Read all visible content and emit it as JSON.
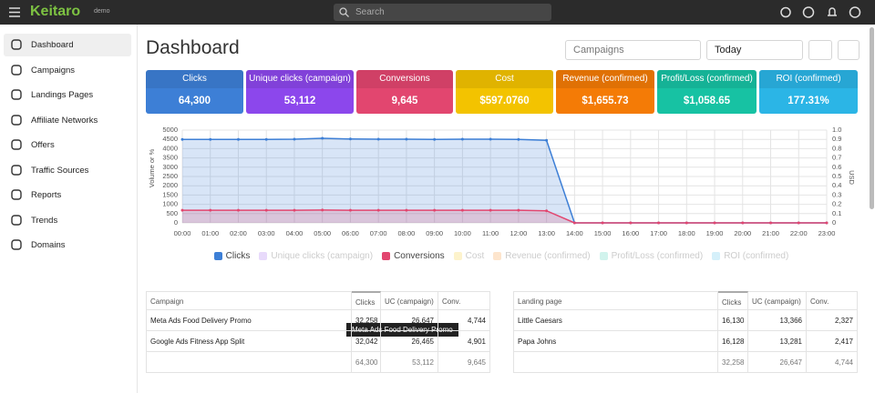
{
  "header": {
    "logo": "Keitaro",
    "badge": "demo",
    "search_placeholder": "Search"
  },
  "sidebar": {
    "items": [
      "Dashboard",
      "Campaigns",
      "Landings Pages",
      "Affiliate Networks",
      "Offers",
      "Traffic Sources",
      "Reports",
      "Trends",
      "Domains"
    ]
  },
  "page": {
    "title": "Dashboard",
    "filters": [
      "Campaigns",
      "Today"
    ]
  },
  "kpis": [
    {
      "label": "Clicks",
      "value": "64,300",
      "color": "#3d7fd6"
    },
    {
      "label": "Unique clicks (campaign)",
      "value": "53,112",
      "color": "#8c47ec"
    },
    {
      "label": "Conversions",
      "value": "9,645",
      "color": "#e2466f"
    },
    {
      "label": "Cost",
      "value": "$597.0760",
      "color": "#f3c300"
    },
    {
      "label": "Revenue (confirmed)",
      "value": "$1,655.73",
      "color": "#f47b06"
    },
    {
      "label": "Profit/Loss (confirmed)",
      "value": "$1,058.65",
      "color": "#17c2a3"
    },
    {
      "label": "ROI (confirmed)",
      "value": "177.31%",
      "color": "#2bb5e6"
    }
  ],
  "chart_data": {
    "type": "line",
    "y_label": "Volume or %",
    "y2_label": "USD",
    "categories": [
      "00:00",
      "01:00",
      "02:00",
      "03:00",
      "04:00",
      "05:00",
      "06:00",
      "07:00",
      "08:00",
      "09:00",
      "10:00",
      "11:00",
      "12:00",
      "13:00",
      "14:00",
      "15:00",
      "16:00",
      "17:00",
      "18:00",
      "19:00",
      "20:00",
      "21:00",
      "22:00",
      "23:00"
    ],
    "series": [
      {
        "name": "Clicks",
        "color": "#3d7fd6",
        "values": [
          4500,
          4500,
          4500,
          4500,
          4510,
          4560,
          4520,
          4510,
          4510,
          4500,
          4510,
          4510,
          4500,
          4450,
          0,
          0,
          0,
          0,
          0,
          0,
          0,
          0,
          0,
          0
        ]
      },
      {
        "name": "Unique clicks (campaign)",
        "color": "#8c47ec",
        "visible": false
      },
      {
        "name": "Conversions",
        "color": "#e2466f",
        "values": [
          680,
          680,
          680,
          680,
          680,
          690,
          680,
          680,
          680,
          680,
          680,
          680,
          680,
          650,
          0,
          0,
          0,
          0,
          0,
          0,
          0,
          0,
          0,
          0
        ]
      },
      {
        "name": "Cost",
        "color": "#f3c300",
        "visible": false
      },
      {
        "name": "Revenue (confirmed)",
        "color": "#f47b06",
        "visible": false
      },
      {
        "name": "Profit/Loss (confirmed)",
        "color": "#17c2a3",
        "visible": false
      },
      {
        "name": "ROI (confirmed)",
        "color": "#2bb5e6",
        "visible": false
      }
    ],
    "ylim": [
      0,
      5000
    ],
    "yticks": [
      0,
      500,
      1000,
      1500,
      2000,
      2500,
      3000,
      3500,
      4000,
      4500,
      5000
    ],
    "y2lim": [
      0,
      1
    ],
    "y2ticks": [
      0,
      0.1,
      0.2,
      0.3,
      0.4,
      0.5,
      0.6,
      0.7,
      0.8,
      0.9,
      {
        "value": 1,
        "label": "1.0"
      }
    ],
    "grid": true
  },
  "tables": [
    {
      "columns": [
        "Campaign",
        "Clicks",
        "UC (campaign)",
        "Conv."
      ],
      "rows": [
        [
          "Meta Ads Food Delivery Promo",
          "32,258",
          "26,647",
          "4,744"
        ],
        [
          "Google Ads Fitness App Split",
          "32,042",
          "26,465",
          "4,901"
        ]
      ],
      "totals": [
        "64,300",
        "53,112",
        "9,645"
      ]
    },
    {
      "columns": [
        "Landing page",
        "Clicks",
        "UC (campaign)",
        "Conv."
      ],
      "rows": [
        [
          "Little Caesars",
          "16,130",
          "13,366",
          "2,327"
        ],
        [
          "Papa Johns",
          "16,128",
          "13,281",
          "2,417"
        ]
      ],
      "totals": [
        "32,258",
        "26,647",
        "4,744"
      ]
    }
  ],
  "tooltip": "Meta Ads Food Delivery Promo"
}
